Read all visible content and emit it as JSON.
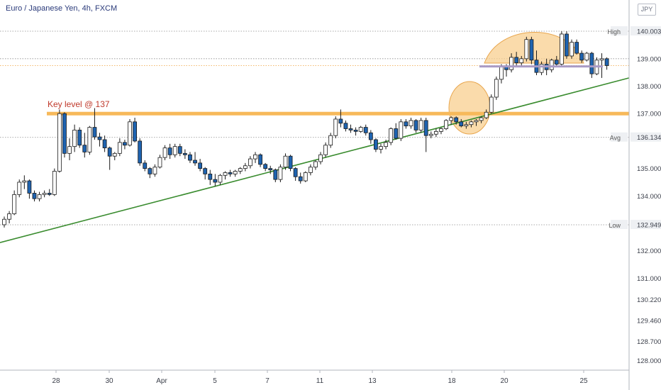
{
  "header": {
    "symbol_title": "Euro / Japanese Yen, 4h, FXCM",
    "currency_badge": "JPY"
  },
  "colors": {
    "up_candle": "#ffffff",
    "down_candle": "#1e63b0",
    "candle_outline": "#1a1a1a",
    "key_level": "#f7b95a",
    "trendline": "#3a8c2f",
    "highlight_fill": "#f8cf8f",
    "annotation_text": "#c0392b",
    "neckline": "#a99bc6"
  },
  "chart_data": {
    "type": "candlestick",
    "x_ticks": [
      "28",
      "30",
      "Apr",
      "5",
      "7",
      "11",
      "13",
      "18",
      "20",
      "25"
    ],
    "y_ticks": [
      "140.003",
      "139.000",
      "138.000",
      "137.000",
      "136.134",
      "135.000",
      "134.000",
      "132.949",
      "132.000",
      "131.000",
      "130.220",
      "129.460",
      "128.700",
      "128.000"
    ],
    "ylim": [
      127.6,
      140.7
    ],
    "reference_lines": [
      {
        "label": "High",
        "value": 140.003
      },
      {
        "label": "Avg",
        "value": 136.134
      },
      {
        "label": "Low",
        "value": 132.949
      }
    ],
    "key_level": {
      "value": 137.0,
      "annotation": "Key level @ 137"
    },
    "trendline": {
      "start_value": 132.3,
      "end_value": 138.3
    },
    "neckline_value": 138.72,
    "last_price_value": 138.75,
    "candles": [
      {
        "o": 132.95,
        "h": 133.25,
        "l": 132.85,
        "c": 133.15
      },
      {
        "o": 133.15,
        "h": 133.45,
        "l": 133.0,
        "c": 133.35
      },
      {
        "o": 133.35,
        "h": 134.2,
        "l": 133.3,
        "c": 134.05
      },
      {
        "o": 134.05,
        "h": 134.6,
        "l": 133.95,
        "c": 134.5
      },
      {
        "o": 134.5,
        "h": 134.75,
        "l": 134.25,
        "c": 134.55
      },
      {
        "o": 134.55,
        "h": 134.6,
        "l": 133.9,
        "c": 134.1
      },
      {
        "o": 134.1,
        "h": 134.2,
        "l": 133.8,
        "c": 133.9
      },
      {
        "o": 133.9,
        "h": 134.15,
        "l": 133.8,
        "c": 134.05
      },
      {
        "o": 134.05,
        "h": 134.2,
        "l": 133.95,
        "c": 134.1
      },
      {
        "o": 134.1,
        "h": 134.25,
        "l": 134.0,
        "c": 134.05
      },
      {
        "o": 134.05,
        "h": 135.0,
        "l": 134.0,
        "c": 134.9
      },
      {
        "o": 134.9,
        "h": 137.15,
        "l": 134.85,
        "c": 137.0
      },
      {
        "o": 137.0,
        "h": 137.05,
        "l": 135.4,
        "c": 135.55
      },
      {
        "o": 135.55,
        "h": 136.1,
        "l": 135.3,
        "c": 135.8
      },
      {
        "o": 135.8,
        "h": 136.6,
        "l": 135.6,
        "c": 136.4
      },
      {
        "o": 136.4,
        "h": 136.5,
        "l": 135.75,
        "c": 135.85
      },
      {
        "o": 135.85,
        "h": 136.3,
        "l": 135.4,
        "c": 135.6
      },
      {
        "o": 135.6,
        "h": 136.55,
        "l": 135.5,
        "c": 136.5
      },
      {
        "o": 136.5,
        "h": 137.2,
        "l": 136.05,
        "c": 136.15
      },
      {
        "o": 136.15,
        "h": 136.3,
        "l": 135.8,
        "c": 136.05
      },
      {
        "o": 136.05,
        "h": 136.2,
        "l": 135.6,
        "c": 135.75
      },
      {
        "o": 135.75,
        "h": 135.8,
        "l": 134.95,
        "c": 135.45
      },
      {
        "o": 135.45,
        "h": 135.6,
        "l": 135.3,
        "c": 135.55
      },
      {
        "o": 135.55,
        "h": 136.1,
        "l": 135.45,
        "c": 135.95
      },
      {
        "o": 135.95,
        "h": 136.05,
        "l": 135.7,
        "c": 135.85
      },
      {
        "o": 135.85,
        "h": 136.8,
        "l": 135.8,
        "c": 136.7
      },
      {
        "o": 136.7,
        "h": 136.85,
        "l": 135.95,
        "c": 136.0
      },
      {
        "o": 136.0,
        "h": 136.1,
        "l": 135.1,
        "c": 135.2
      },
      {
        "o": 135.2,
        "h": 135.3,
        "l": 134.9,
        "c": 135.0
      },
      {
        "o": 135.0,
        "h": 135.05,
        "l": 134.65,
        "c": 134.8
      },
      {
        "o": 134.8,
        "h": 135.15,
        "l": 134.7,
        "c": 135.05
      },
      {
        "o": 135.05,
        "h": 135.5,
        "l": 135.0,
        "c": 135.4
      },
      {
        "o": 135.4,
        "h": 135.85,
        "l": 135.3,
        "c": 135.75
      },
      {
        "o": 135.75,
        "h": 135.9,
        "l": 135.35,
        "c": 135.5
      },
      {
        "o": 135.5,
        "h": 135.9,
        "l": 135.4,
        "c": 135.8
      },
      {
        "o": 135.8,
        "h": 135.9,
        "l": 135.45,
        "c": 135.55
      },
      {
        "o": 135.55,
        "h": 135.7,
        "l": 135.35,
        "c": 135.5
      },
      {
        "o": 135.5,
        "h": 135.6,
        "l": 135.2,
        "c": 135.3
      },
      {
        "o": 135.3,
        "h": 135.6,
        "l": 135.1,
        "c": 135.2
      },
      {
        "o": 135.2,
        "h": 135.35,
        "l": 134.9,
        "c": 135.0
      },
      {
        "o": 135.0,
        "h": 135.05,
        "l": 134.6,
        "c": 134.8
      },
      {
        "o": 134.8,
        "h": 134.95,
        "l": 134.4,
        "c": 134.6
      },
      {
        "o": 134.6,
        "h": 134.8,
        "l": 134.35,
        "c": 134.5
      },
      {
        "o": 134.5,
        "h": 134.8,
        "l": 134.4,
        "c": 134.75
      },
      {
        "o": 134.75,
        "h": 134.9,
        "l": 134.6,
        "c": 134.85
      },
      {
        "o": 134.85,
        "h": 134.95,
        "l": 134.7,
        "c": 134.8
      },
      {
        "o": 134.8,
        "h": 134.95,
        "l": 134.7,
        "c": 134.9
      },
      {
        "o": 134.9,
        "h": 135.05,
        "l": 134.8,
        "c": 135.0
      },
      {
        "o": 135.0,
        "h": 135.2,
        "l": 134.9,
        "c": 135.1
      },
      {
        "o": 135.1,
        "h": 135.45,
        "l": 135.0,
        "c": 135.35
      },
      {
        "o": 135.35,
        "h": 135.6,
        "l": 135.2,
        "c": 135.5
      },
      {
        "o": 135.5,
        "h": 135.55,
        "l": 135.05,
        "c": 135.15
      },
      {
        "o": 135.15,
        "h": 135.2,
        "l": 134.9,
        "c": 135.0
      },
      {
        "o": 135.0,
        "h": 135.1,
        "l": 134.8,
        "c": 134.95
      },
      {
        "o": 134.95,
        "h": 135.0,
        "l": 134.5,
        "c": 134.6
      },
      {
        "o": 134.6,
        "h": 135.15,
        "l": 134.5,
        "c": 135.05
      },
      {
        "o": 135.05,
        "h": 135.55,
        "l": 134.95,
        "c": 135.45
      },
      {
        "o": 135.45,
        "h": 135.5,
        "l": 134.9,
        "c": 135.0
      },
      {
        "o": 135.0,
        "h": 135.05,
        "l": 134.55,
        "c": 134.7
      },
      {
        "o": 134.7,
        "h": 134.85,
        "l": 134.45,
        "c": 134.55
      },
      {
        "o": 134.55,
        "h": 134.9,
        "l": 134.5,
        "c": 134.85
      },
      {
        "o": 134.85,
        "h": 135.15,
        "l": 134.75,
        "c": 135.05
      },
      {
        "o": 135.05,
        "h": 135.3,
        "l": 134.95,
        "c": 135.25
      },
      {
        "o": 135.25,
        "h": 135.6,
        "l": 135.15,
        "c": 135.5
      },
      {
        "o": 135.5,
        "h": 135.95,
        "l": 135.4,
        "c": 135.85
      },
      {
        "o": 135.85,
        "h": 136.3,
        "l": 135.75,
        "c": 136.2
      },
      {
        "o": 136.2,
        "h": 136.9,
        "l": 136.1,
        "c": 136.8
      },
      {
        "o": 136.8,
        "h": 137.15,
        "l": 136.5,
        "c": 136.65
      },
      {
        "o": 136.65,
        "h": 136.75,
        "l": 136.35,
        "c": 136.45
      },
      {
        "o": 136.45,
        "h": 136.6,
        "l": 136.3,
        "c": 136.4
      },
      {
        "o": 136.4,
        "h": 136.5,
        "l": 136.2,
        "c": 136.35
      },
      {
        "o": 136.35,
        "h": 136.55,
        "l": 136.3,
        "c": 136.5
      },
      {
        "o": 136.5,
        "h": 136.6,
        "l": 136.2,
        "c": 136.3
      },
      {
        "o": 136.3,
        "h": 136.4,
        "l": 135.9,
        "c": 136.05
      },
      {
        "o": 136.05,
        "h": 136.1,
        "l": 135.6,
        "c": 135.7
      },
      {
        "o": 135.7,
        "h": 135.9,
        "l": 135.55,
        "c": 135.8
      },
      {
        "o": 135.8,
        "h": 136.05,
        "l": 135.7,
        "c": 135.95
      },
      {
        "o": 135.95,
        "h": 136.5,
        "l": 135.85,
        "c": 136.45
      },
      {
        "o": 136.45,
        "h": 136.65,
        "l": 136.05,
        "c": 136.1
      },
      {
        "o": 136.1,
        "h": 136.8,
        "l": 136.0,
        "c": 136.7
      },
      {
        "o": 136.7,
        "h": 136.8,
        "l": 136.45,
        "c": 136.55
      },
      {
        "o": 136.55,
        "h": 136.85,
        "l": 136.45,
        "c": 136.75
      },
      {
        "o": 136.75,
        "h": 136.8,
        "l": 136.3,
        "c": 136.4
      },
      {
        "o": 136.4,
        "h": 136.85,
        "l": 136.3,
        "c": 136.75
      },
      {
        "o": 136.75,
        "h": 136.85,
        "l": 135.6,
        "c": 136.2
      },
      {
        "o": 136.2,
        "h": 136.35,
        "l": 136.1,
        "c": 136.25
      },
      {
        "o": 136.25,
        "h": 136.45,
        "l": 136.15,
        "c": 136.35
      },
      {
        "o": 136.35,
        "h": 136.5,
        "l": 136.25,
        "c": 136.45
      },
      {
        "o": 136.45,
        "h": 136.8,
        "l": 136.4,
        "c": 136.75
      },
      {
        "o": 136.75,
        "h": 136.9,
        "l": 136.6,
        "c": 136.85
      },
      {
        "o": 136.85,
        "h": 136.9,
        "l": 136.6,
        "c": 136.7
      },
      {
        "o": 136.7,
        "h": 136.8,
        "l": 136.5,
        "c": 136.55
      },
      {
        "o": 136.55,
        "h": 136.7,
        "l": 136.45,
        "c": 136.6
      },
      {
        "o": 136.6,
        "h": 136.75,
        "l": 136.5,
        "c": 136.7
      },
      {
        "o": 136.7,
        "h": 136.8,
        "l": 136.55,
        "c": 136.75
      },
      {
        "o": 136.75,
        "h": 136.9,
        "l": 136.65,
        "c": 136.85
      },
      {
        "o": 136.85,
        "h": 137.15,
        "l": 136.8,
        "c": 137.05
      },
      {
        "o": 137.05,
        "h": 137.7,
        "l": 137.0,
        "c": 137.6
      },
      {
        "o": 137.6,
        "h": 138.35,
        "l": 137.5,
        "c": 138.25
      },
      {
        "o": 138.25,
        "h": 138.8,
        "l": 138.1,
        "c": 138.7
      },
      {
        "o": 138.7,
        "h": 138.8,
        "l": 138.35,
        "c": 138.6
      },
      {
        "o": 138.6,
        "h": 139.2,
        "l": 138.5,
        "c": 139.05
      },
      {
        "o": 139.05,
        "h": 139.25,
        "l": 138.75,
        "c": 138.85
      },
      {
        "o": 138.85,
        "h": 139.1,
        "l": 138.7,
        "c": 139.0
      },
      {
        "o": 139.0,
        "h": 139.8,
        "l": 138.9,
        "c": 139.7
      },
      {
        "o": 139.7,
        "h": 139.8,
        "l": 138.8,
        "c": 138.95
      },
      {
        "o": 138.95,
        "h": 139.3,
        "l": 138.4,
        "c": 138.5
      },
      {
        "o": 138.5,
        "h": 138.9,
        "l": 138.4,
        "c": 138.8
      },
      {
        "o": 138.8,
        "h": 139.0,
        "l": 138.4,
        "c": 138.6
      },
      {
        "o": 138.6,
        "h": 139.0,
        "l": 138.5,
        "c": 138.95
      },
      {
        "o": 138.95,
        "h": 139.1,
        "l": 138.7,
        "c": 138.8
      },
      {
        "o": 138.8,
        "h": 140.0,
        "l": 138.7,
        "c": 139.9
      },
      {
        "o": 139.9,
        "h": 140.0,
        "l": 139.0,
        "c": 139.1
      },
      {
        "o": 139.1,
        "h": 139.7,
        "l": 139.0,
        "c": 139.6
      },
      {
        "o": 139.6,
        "h": 139.7,
        "l": 139.15,
        "c": 139.2
      },
      {
        "o": 139.2,
        "h": 139.3,
        "l": 138.85,
        "c": 138.95
      },
      {
        "o": 138.95,
        "h": 139.25,
        "l": 138.9,
        "c": 139.2
      },
      {
        "o": 139.2,
        "h": 139.25,
        "l": 138.3,
        "c": 138.45
      },
      {
        "o": 138.45,
        "h": 139.05,
        "l": 138.4,
        "c": 138.95
      },
      {
        "o": 138.95,
        "h": 139.2,
        "l": 138.3,
        "c": 139.0
      },
      {
        "o": 139.0,
        "h": 139.05,
        "l": 138.6,
        "c": 138.75
      }
    ]
  }
}
